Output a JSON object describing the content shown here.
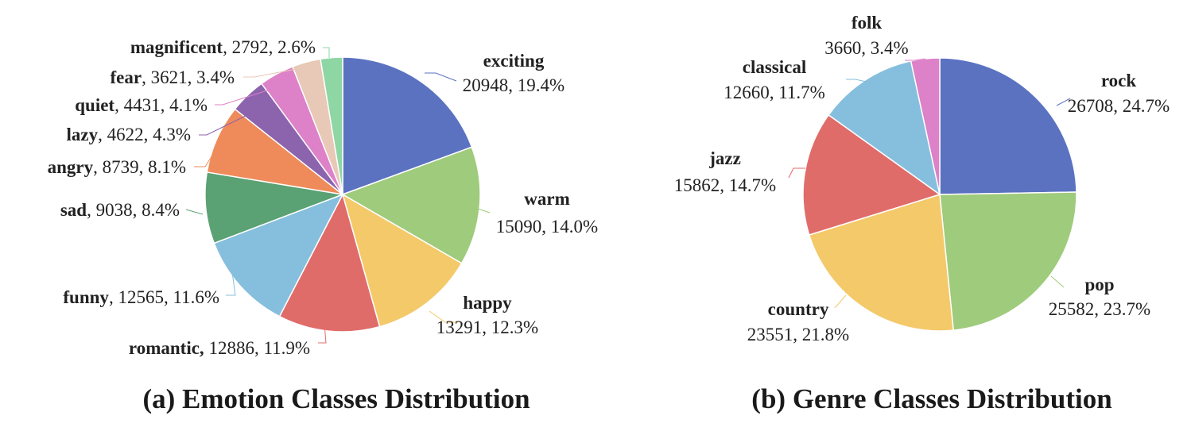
{
  "chart_data": [
    {
      "type": "pie",
      "title": "(a) Emotion Classes Distribution",
      "slices": [
        {
          "label": "exciting",
          "value": 20948,
          "percent": "19.4%",
          "color": "#5b72c1"
        },
        {
          "label": "warm",
          "value": 15090,
          "percent": "14.0%",
          "color": "#9fcb7c"
        },
        {
          "label": "happy",
          "value": 13291,
          "percent": "12.3%",
          "color": "#f4c96a"
        },
        {
          "label": "romantic,",
          "value": 12886,
          "percent": "11.9%",
          "color": "#e06c6a"
        },
        {
          "label": "funny",
          "value": 12565,
          "percent": "11.6%",
          "color": "#86bfdd"
        },
        {
          "label": "sad",
          "value": 9038,
          "percent": "8.4%",
          "color": "#5aa174"
        },
        {
          "label": "angry",
          "value": 8739,
          "percent": "8.1%",
          "color": "#ef8b5a"
        },
        {
          "label": "lazy",
          "value": 4622,
          "percent": "4.3%",
          "color": "#8c63ad"
        },
        {
          "label": "quiet",
          "value": 4431,
          "percent": "4.1%",
          "color": "#dd81c8"
        },
        {
          "label": "fear",
          "value": 3621,
          "percent": "3.4%",
          "color": "#e8c8b6"
        },
        {
          "label": "magnificent",
          "value": 2792,
          "percent": "2.6%",
          "color": "#8ed6a4"
        }
      ]
    },
    {
      "type": "pie",
      "title": "(b) Genre Classes Distribution",
      "slices": [
        {
          "label": "rock",
          "value": 26708,
          "percent": "24.7%",
          "color": "#5b72c1"
        },
        {
          "label": "pop",
          "value": 25582,
          "percent": "23.7%",
          "color": "#9fcb7c"
        },
        {
          "label": "country",
          "value": 23551,
          "percent": "21.8%",
          "color": "#f4c96a"
        },
        {
          "label": "jazz",
          "value": 15862,
          "percent": "14.7%",
          "color": "#e06c6a"
        },
        {
          "label": "classical",
          "value": 12660,
          "percent": "11.7%",
          "color": "#86bfdd"
        },
        {
          "label": "folk",
          "value": 3660,
          "percent": "3.4%",
          "color": "#dd81c8"
        }
      ]
    }
  ]
}
